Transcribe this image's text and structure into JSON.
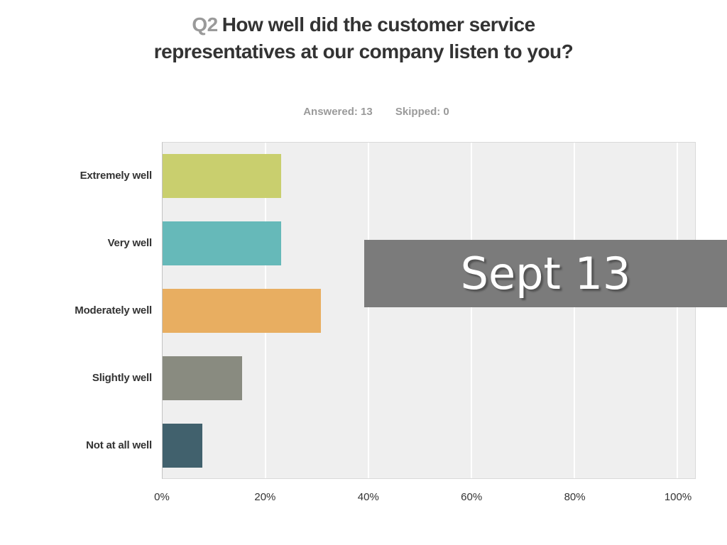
{
  "header": {
    "question_number": "Q2",
    "question_text": "How well did the customer service representatives at our company listen to you?",
    "answered_label": "Answered: 13",
    "skipped_label": "Skipped: 0"
  },
  "overlay": {
    "label": "Sept 13",
    "background": "#7b7b7b",
    "text_color": "#ffffff"
  },
  "chart_data": {
    "type": "bar",
    "orientation": "horizontal",
    "title": "Q2 How well did the customer service representatives at our company listen to you?",
    "answered": 13,
    "skipped": 0,
    "categories": [
      "Extremely well",
      "Very well",
      "Moderately well",
      "Slightly well",
      "Not at all well"
    ],
    "values": [
      23.08,
      23.08,
      30.77,
      15.38,
      7.69
    ],
    "bar_colors": [
      "#c9cf6e",
      "#66b9b9",
      "#e8ae61",
      "#898b80",
      "#41616d"
    ],
    "x_ticks": [
      "0%",
      "20%",
      "40%",
      "60%",
      "80%",
      "100%"
    ],
    "x_tick_values": [
      0,
      20,
      40,
      60,
      80,
      100
    ],
    "xlim": [
      0,
      100
    ],
    "xlabel": "",
    "ylabel": "",
    "plot_background": "#efefef",
    "gridline_color": "#ffffff",
    "grid": "vertical",
    "legend": "none"
  }
}
